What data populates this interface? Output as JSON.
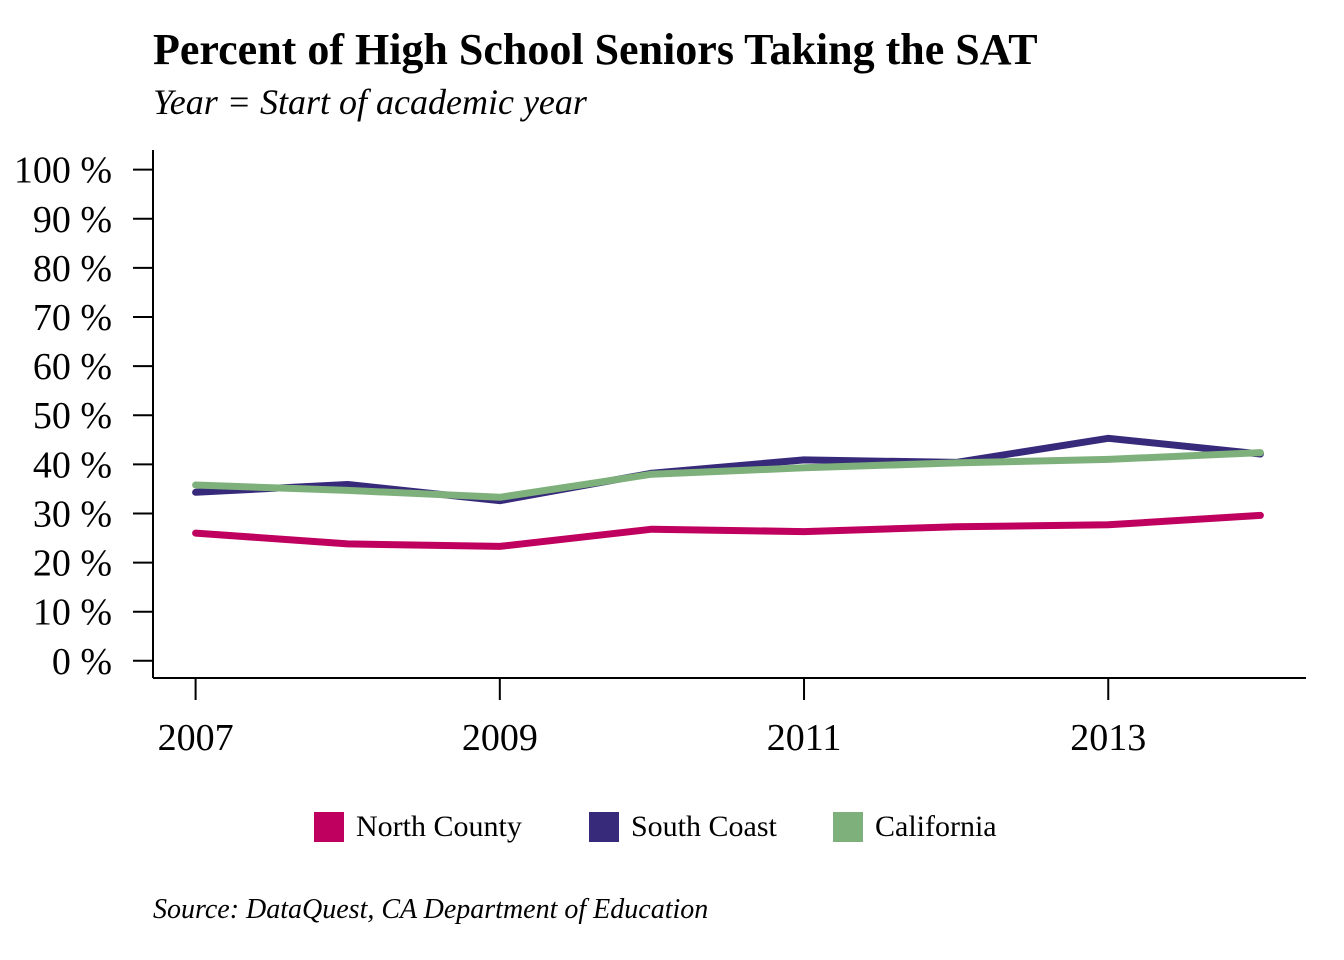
{
  "chart_data": {
    "type": "line",
    "title": "Percent of High School Seniors Taking the SAT",
    "subtitle": "Year = Start of academic year",
    "x": [
      2007,
      2008,
      2009,
      2010,
      2011,
      2012,
      2013,
      2014
    ],
    "xticks": [
      "2007",
      "2009",
      "2011",
      "2013"
    ],
    "xtick_values": [
      2007,
      2009,
      2011,
      2013
    ],
    "xlim": [
      2006.72,
      2014.3
    ],
    "ylim": [
      -3.5,
      104
    ],
    "yticks": [
      "0 %",
      "10 %",
      "20 %",
      "30 %",
      "40 %",
      "50 %",
      "60 %",
      "70 %",
      "80 %",
      "90 %",
      "100 %"
    ],
    "ytick_values": [
      0,
      10,
      20,
      30,
      40,
      50,
      60,
      70,
      80,
      90,
      100
    ],
    "xlabel": "",
    "ylabel": "",
    "grid": false,
    "legend_position": "bottom",
    "series": [
      {
        "name": "North County",
        "color": "#c0005f",
        "values": [
          26.0,
          23.8,
          23.3,
          26.8,
          26.3,
          27.3,
          27.7,
          29.6
        ]
      },
      {
        "name": "South Coast",
        "color": "#372a7a",
        "values": [
          34.3,
          35.9,
          32.6,
          38.2,
          40.9,
          40.4,
          45.3,
          42.1
        ]
      },
      {
        "name": "California",
        "color": "#7eb07b",
        "values": [
          35.8,
          34.7,
          33.3,
          38.0,
          39.3,
          40.3,
          41.0,
          42.4
        ]
      }
    ]
  },
  "source": "Source: DataQuest, CA Department of Education"
}
